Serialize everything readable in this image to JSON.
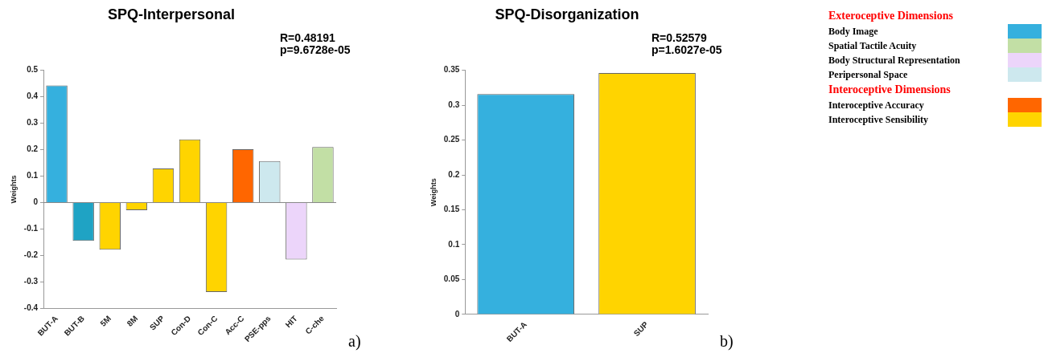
{
  "chart_data": [
    {
      "type": "bar",
      "title": "SPQ-Interpersonal",
      "ylabel": "Weights",
      "categories": [
        "BUT-A",
        "BUT-B",
        "5M",
        "8M",
        "SUP",
        "Con-D",
        "Con-C",
        "Acc-C",
        "PSE-pps",
        "HIT",
        "C-che"
      ],
      "values": [
        0.443,
        -0.145,
        -0.178,
        -0.029,
        0.129,
        0.239,
        -0.338,
        0.202,
        0.157,
        -0.215,
        0.21
      ],
      "colors": [
        "#35b0de",
        "#1fa3c4",
        "#ffd400",
        "#ffd400",
        "#ffd400",
        "#ffd400",
        "#ffd400",
        "#ff6600",
        "#cde8ee",
        "#ecd5fa",
        "#c2dfa5"
      ],
      "ylim": [
        -0.4,
        0.5
      ],
      "yticks": [
        -0.4,
        -0.3,
        -0.2,
        -0.1,
        0,
        0.1,
        0.2,
        0.3,
        0.4,
        0.5
      ],
      "grid": false,
      "ref_lines": [
        {
          "axis": "y",
          "value": 0,
          "label": null
        }
      ],
      "annotations": [
        "R=0.48191",
        "p=9.6728e-05",
        "a)"
      ]
    },
    {
      "type": "bar",
      "title": "SPQ-Disorganization",
      "ylabel": "Weights",
      "categories": [
        "BUT-A",
        "SUP"
      ],
      "values": [
        0.316,
        0.346
      ],
      "colors": [
        "#35b0de",
        "#ffd400"
      ],
      "ylim": [
        0,
        0.35
      ],
      "yticks": [
        0,
        0.05,
        0.1,
        0.15,
        0.2,
        0.25,
        0.3,
        0.35
      ],
      "grid": false,
      "annotations": [
        "R=0.52579",
        "p=1.6027e-05",
        "b)"
      ]
    },
    {
      "type": "other",
      "categories": [
        "Exteroceptive Dimensions",
        "Body Image",
        "Spatial Tactile Acuity",
        "Body Structural Representation",
        "Peripersonal Space",
        "Interoceptive Dimensions",
        "Interoceptive Accuracy",
        "Interoceptive Sensibility"
      ],
      "colors": [
        null,
        "#35b0de",
        "#c2dfa5",
        "#ecd5fa",
        "#cde8ee",
        null,
        "#ff6600",
        "#ffd400"
      ]
    }
  ]
}
